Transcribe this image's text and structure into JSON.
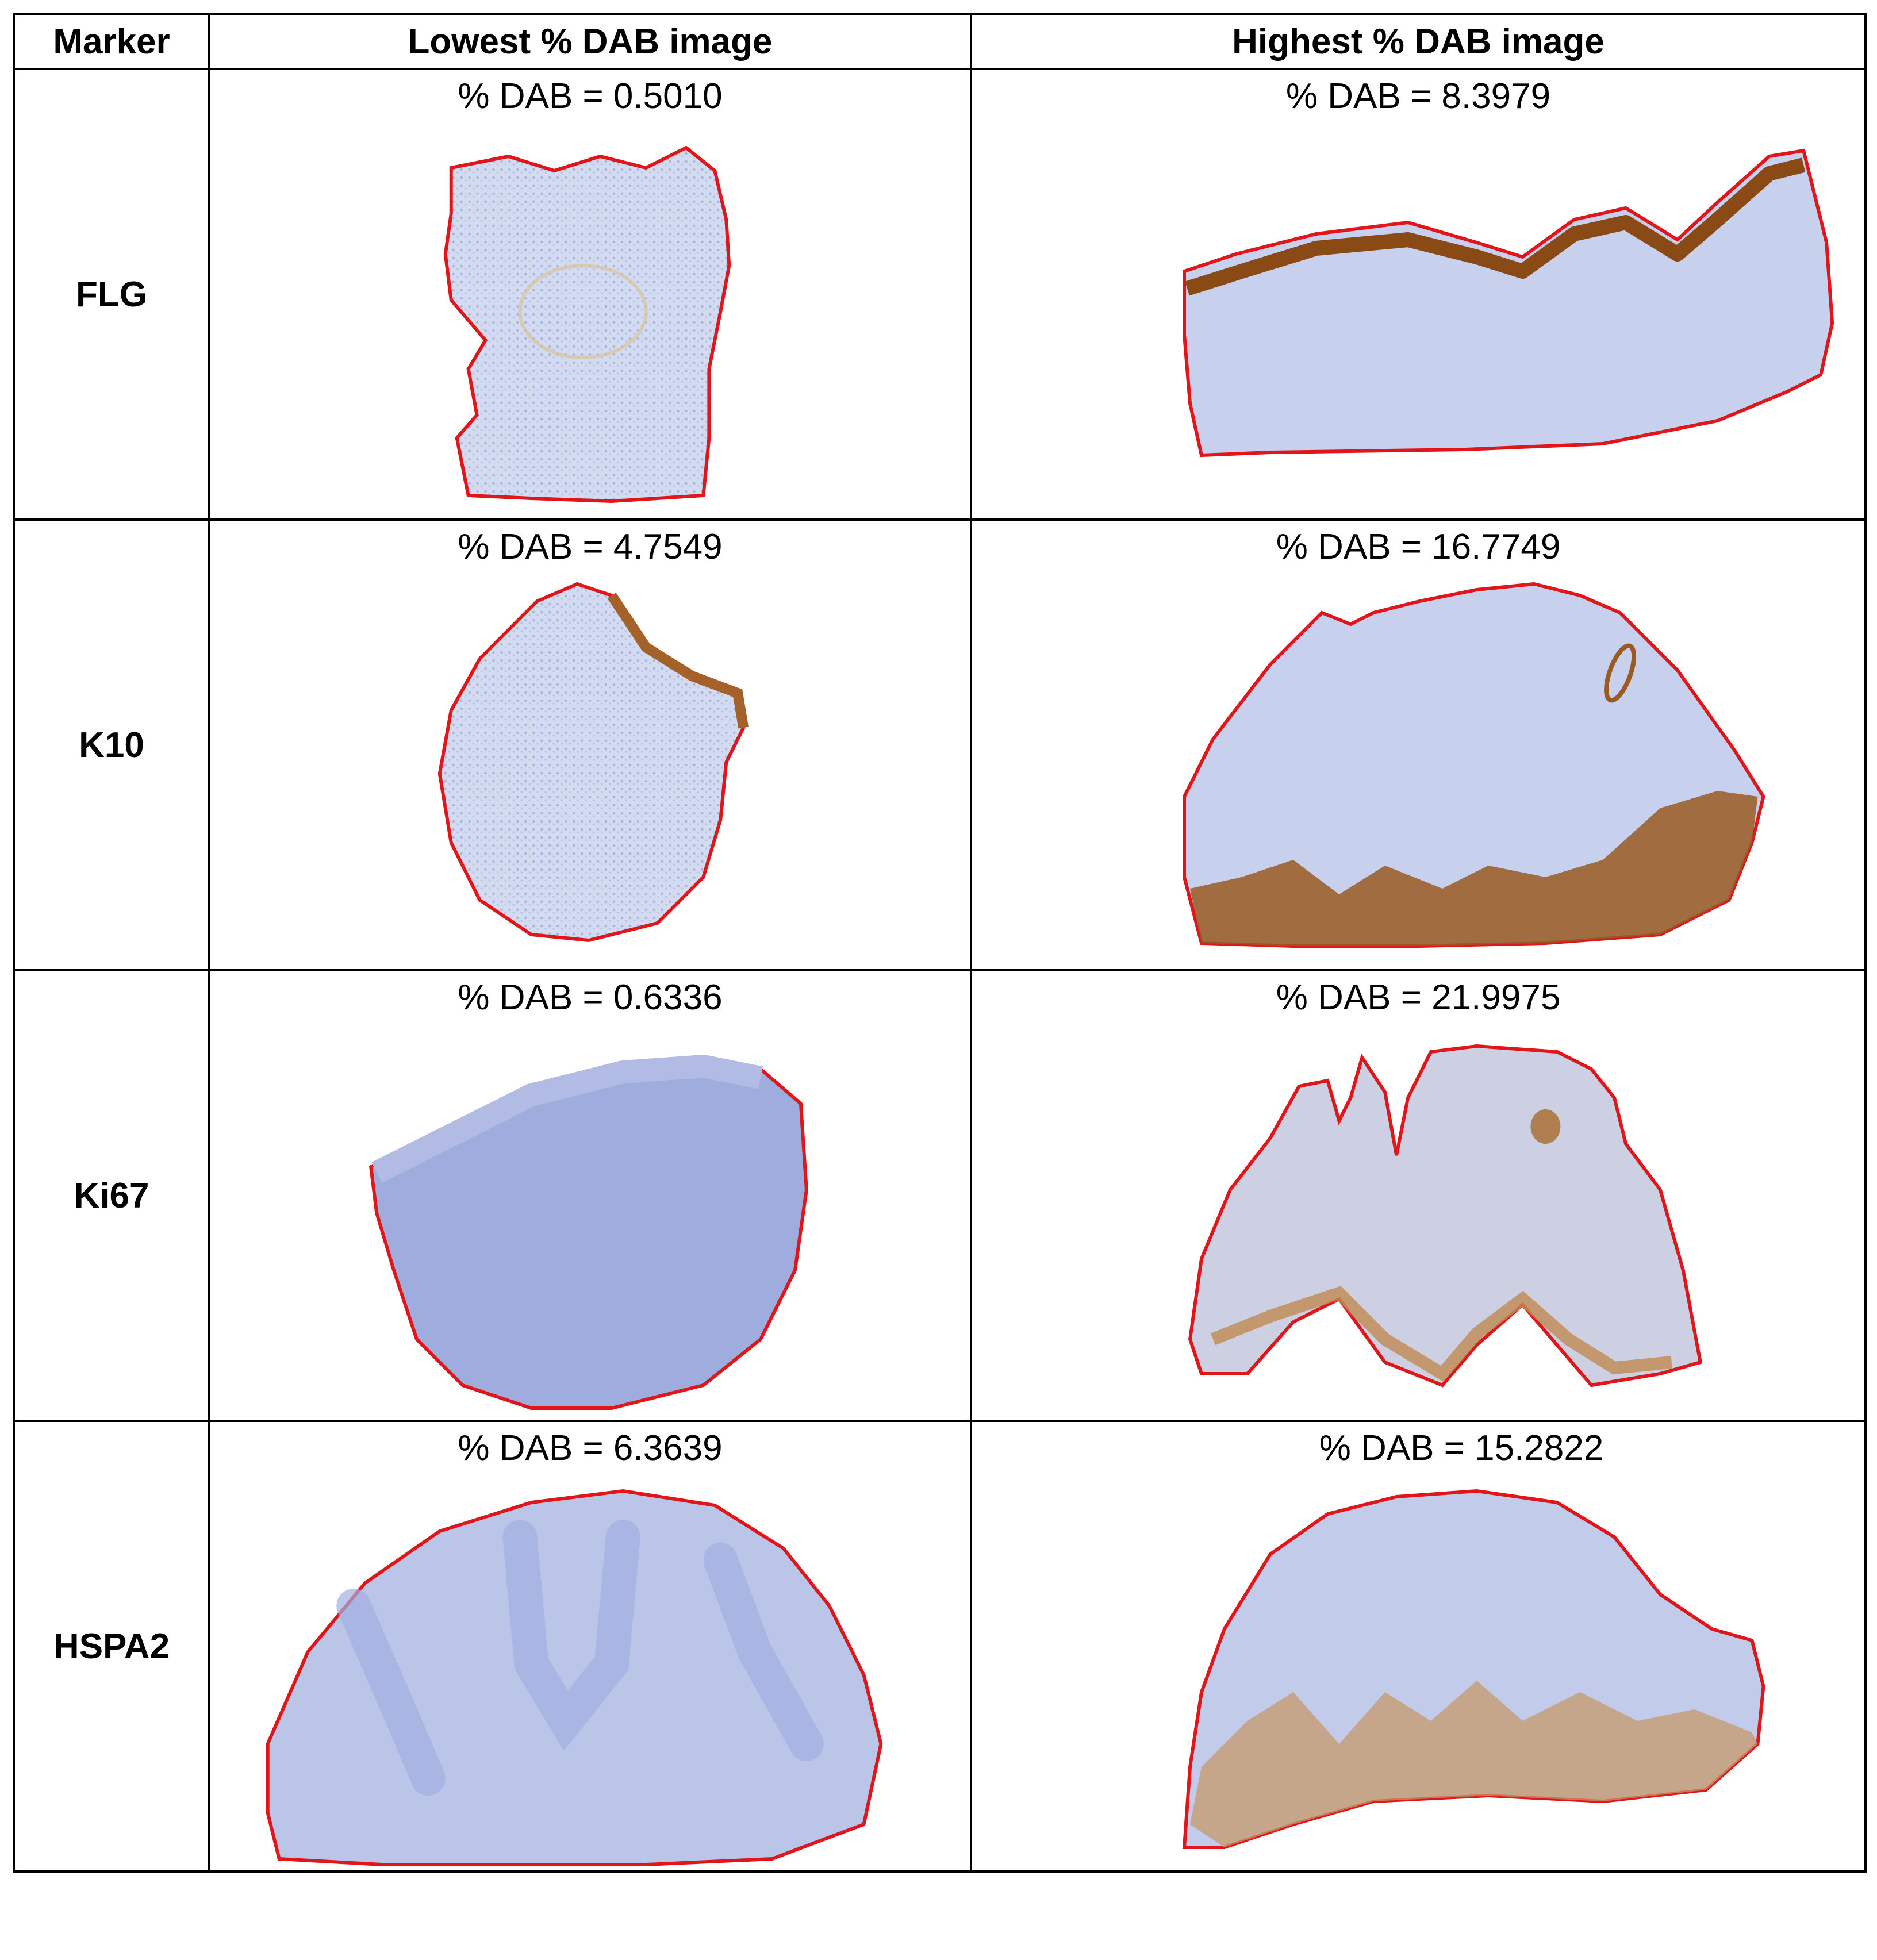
{
  "table": {
    "headers": [
      "Marker",
      "Lowest % DAB image",
      "Highest % DAB image"
    ],
    "rows": [
      {
        "marker": "FLG",
        "low_dab": "% DAB = 0.5010",
        "high_dab": "% DAB = 8.3979"
      },
      {
        "marker": "K10",
        "low_dab": "% DAB = 4.7549",
        "high_dab": "% DAB = 16.7749"
      },
      {
        "marker": "Ki67",
        "low_dab": "% DAB = 0.6336",
        "high_dab": "% DAB = 21.9975"
      },
      {
        "marker": "HSPA2",
        "low_dab": "% DAB = 6.3639",
        "high_dab": "% DAB = 15.2822"
      }
    ]
  },
  "colors": {
    "outline": "#e0161b",
    "tissue_fill": "#c9d2ec",
    "tissue_texture": "#9aa8dc",
    "dab_stain": "#9a5a22",
    "border": "#000000"
  }
}
